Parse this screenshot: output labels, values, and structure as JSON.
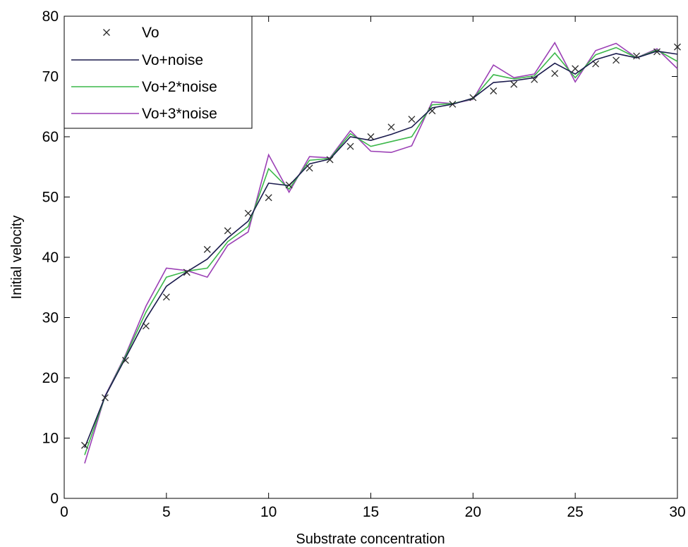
{
  "chart_data": {
    "type": "line",
    "title": "",
    "xlabel": "Substrate concentration",
    "ylabel": "Initial velocity",
    "xlim": [
      0,
      30
    ],
    "ylim": [
      0,
      80
    ],
    "xticks": [
      0,
      5,
      10,
      15,
      20,
      25,
      30
    ],
    "yticks": [
      0,
      10,
      20,
      30,
      40,
      50,
      60,
      70,
      80
    ],
    "grid": false,
    "legend_position": "top-left",
    "x": [
      1,
      2,
      3,
      4,
      5,
      6,
      7,
      8,
      9,
      10,
      11,
      12,
      13,
      14,
      15,
      16,
      17,
      18,
      19,
      20,
      21,
      22,
      23,
      24,
      25,
      26,
      27,
      28,
      29,
      30
    ],
    "series": [
      {
        "name": "Vo",
        "style": "marker",
        "marker": "x",
        "color": "#2b2b2b",
        "values": [
          8.8,
          16.7,
          22.9,
          28.6,
          33.4,
          37.5,
          41.3,
          44.4,
          47.3,
          49.9,
          52.0,
          54.8,
          56.2,
          58.4,
          60.0,
          61.6,
          62.9,
          64.3,
          65.4,
          66.5,
          67.6,
          68.7,
          69.5,
          70.5,
          71.3,
          72.1,
          72.7,
          73.4,
          74.1,
          74.9
        ]
      },
      {
        "name": "Vo+noise",
        "style": "line",
        "color": "#1a1a4d",
        "values": [
          8.4,
          16.9,
          23.3,
          29.8,
          35.2,
          37.6,
          39.7,
          43.2,
          46.0,
          52.3,
          51.9,
          55.5,
          56.3,
          60.0,
          59.4,
          60.4,
          61.6,
          64.8,
          65.4,
          66.4,
          69.0,
          69.3,
          69.8,
          72.2,
          70.4,
          72.8,
          73.8,
          73.1,
          74.2,
          73.7
        ]
      },
      {
        "name": "Vo+2*noise",
        "style": "line",
        "color": "#3cb84a",
        "values": [
          7.2,
          16.9,
          23.6,
          30.9,
          36.7,
          37.7,
          38.2,
          42.6,
          45.1,
          54.7,
          51.3,
          56.1,
          56.4,
          60.5,
          58.4,
          59.2,
          60.0,
          65.3,
          65.5,
          66.3,
          70.3,
          69.6,
          70.1,
          73.9,
          69.8,
          73.6,
          74.8,
          73.1,
          74.4,
          72.5
        ]
      },
      {
        "name": "Vo+3*noise",
        "style": "line",
        "color": "#9b3fb5",
        "values": [
          5.8,
          17.0,
          23.8,
          31.9,
          38.2,
          37.8,
          36.7,
          42.0,
          44.2,
          57.0,
          50.8,
          56.7,
          56.5,
          61.0,
          57.6,
          57.4,
          58.5,
          65.8,
          65.5,
          66.2,
          71.9,
          69.8,
          70.4,
          75.6,
          69.1,
          74.3,
          75.5,
          73.1,
          74.6,
          71.3
        ]
      }
    ]
  }
}
